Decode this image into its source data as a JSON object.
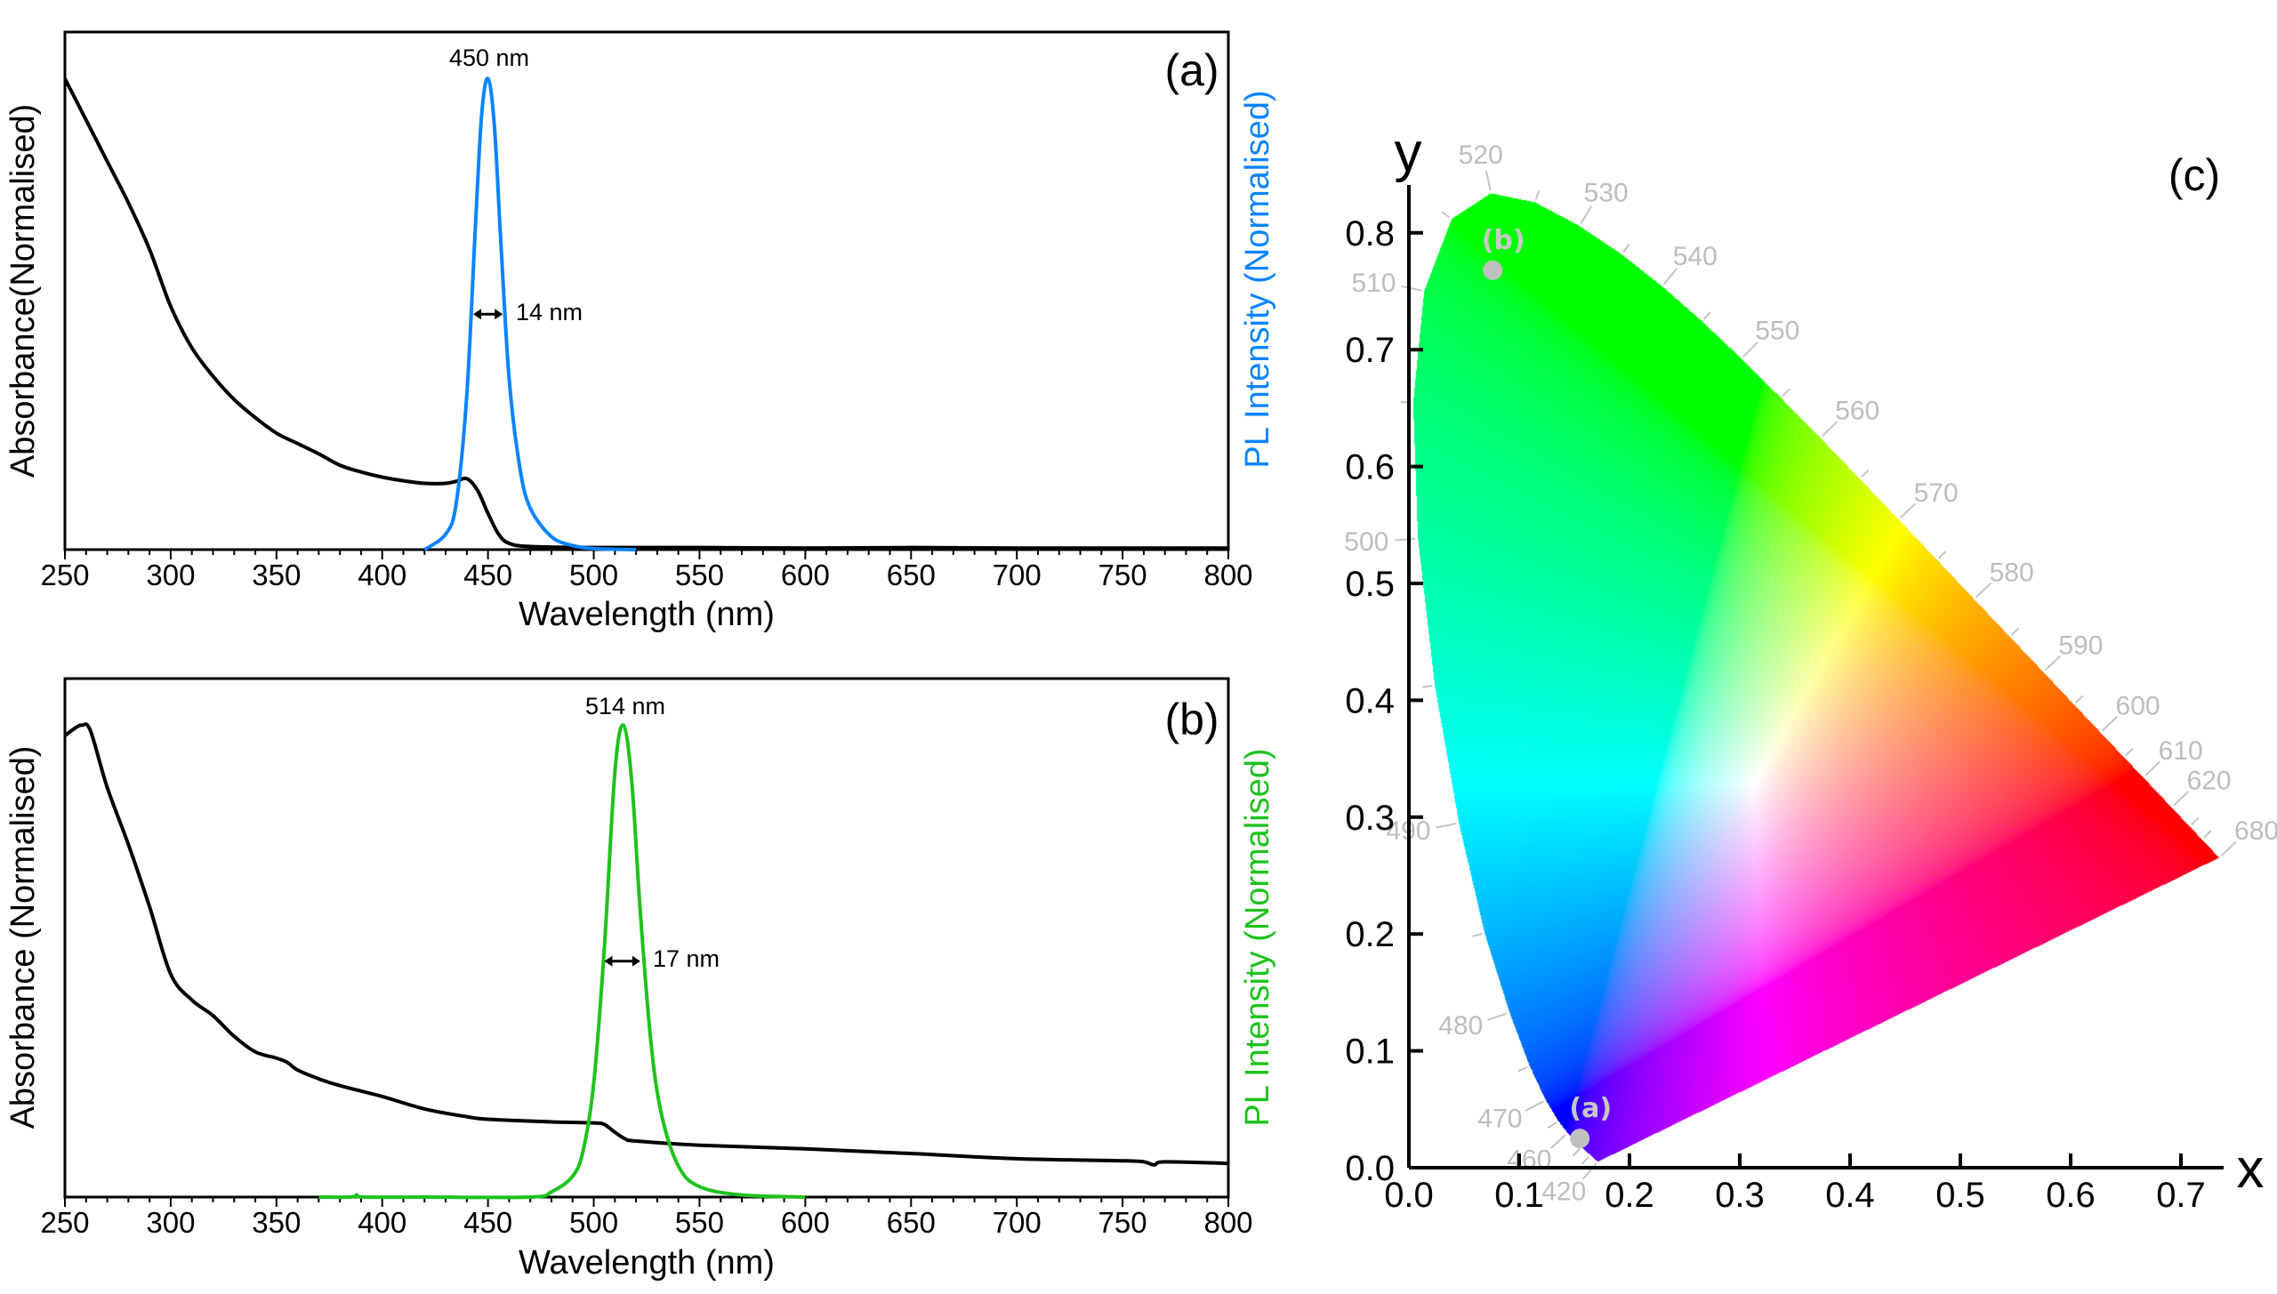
{
  "chart_data": [
    {
      "id": "panel-a",
      "type": "line",
      "panel_label": "(a)",
      "xlabel": "Wavelength (nm)",
      "ylabel_left": "Absorbance(Normalised)",
      "ylabel_right": "PL Intensity (Normalised)",
      "xlim": [
        250,
        800
      ],
      "ylim": [
        0,
        1
      ],
      "x_ticks": [
        250,
        300,
        350,
        400,
        450,
        500,
        550,
        600,
        650,
        700,
        750,
        800
      ],
      "x_minor_step": 10,
      "grid": false,
      "annotations": {
        "peak": "450 nm",
        "fwhm": "14 nm",
        "peak_x": 450,
        "fwhm_range": [
          443,
          457
        ]
      },
      "series": [
        {
          "name": "Absorbance",
          "color": "#000000",
          "x": [
            250,
            260,
            270,
            280,
            290,
            300,
            310,
            320,
            330,
            340,
            350,
            360,
            370,
            380,
            390,
            400,
            410,
            420,
            430,
            435,
            440,
            445,
            450,
            455,
            460,
            470,
            500,
            550,
            600,
            650,
            700,
            750,
            800
          ],
          "y": [
            0.91,
            0.83,
            0.75,
            0.67,
            0.58,
            0.47,
            0.39,
            0.335,
            0.29,
            0.255,
            0.225,
            0.205,
            0.185,
            0.163,
            0.15,
            0.14,
            0.133,
            0.128,
            0.128,
            0.132,
            0.137,
            0.115,
            0.07,
            0.03,
            0.012,
            0.006,
            0.004,
            0.004,
            0.003,
            0.004,
            0.003,
            0.003,
            0.003
          ]
        },
        {
          "name": "PL",
          "color": "#0a84ff",
          "x": [
            420,
            430,
            435,
            440,
            444,
            447,
            450,
            453,
            456,
            460,
            465,
            470,
            480,
            490,
            500,
            520
          ],
          "y": [
            0,
            0.03,
            0.09,
            0.3,
            0.62,
            0.84,
            0.91,
            0.82,
            0.6,
            0.33,
            0.16,
            0.08,
            0.025,
            0.008,
            0.002,
            0
          ]
        }
      ]
    },
    {
      "id": "panel-b",
      "type": "line",
      "panel_label": "(b)",
      "xlabel": "Wavelength (nm)",
      "ylabel_left": "Absorbance (Normalised)",
      "ylabel_right": "PL Intensity (Normalised)",
      "xlim": [
        250,
        800
      ],
      "ylim": [
        0,
        1
      ],
      "x_ticks": [
        250,
        300,
        350,
        400,
        450,
        500,
        550,
        600,
        650,
        700,
        750,
        800
      ],
      "x_minor_step": 10,
      "grid": false,
      "annotations": {
        "peak": "514 nm",
        "fwhm": "17 nm",
        "peak_x": 514,
        "fwhm_range": [
          505,
          522
        ]
      },
      "series": [
        {
          "name": "Absorbance",
          "color": "#000000",
          "x": [
            250,
            255,
            258,
            262,
            270,
            280,
            290,
            300,
            310,
            320,
            330,
            340,
            350,
            355,
            360,
            370,
            380,
            400,
            420,
            440,
            450,
            480,
            500,
            505,
            510,
            515,
            520,
            550,
            600,
            650,
            700,
            750,
            760,
            765,
            770,
            800
          ],
          "y": [
            0.89,
            0.905,
            0.91,
            0.9,
            0.79,
            0.68,
            0.56,
            0.43,
            0.38,
            0.35,
            0.31,
            0.28,
            0.268,
            0.26,
            0.245,
            0.228,
            0.215,
            0.194,
            0.17,
            0.155,
            0.15,
            0.145,
            0.143,
            0.14,
            0.125,
            0.112,
            0.108,
            0.1,
            0.093,
            0.084,
            0.074,
            0.07,
            0.068,
            0.062,
            0.068,
            0.065
          ]
        },
        {
          "name": "PL",
          "color": "#1ec21e",
          "x": [
            370,
            385,
            388,
            391,
            420,
            470,
            480,
            490,
            495,
            500,
            505,
            510,
            514,
            518,
            522,
            527,
            532,
            540,
            550,
            570,
            600
          ],
          "y": [
            0,
            0,
            0.004,
            0,
            0,
            0,
            0.01,
            0.04,
            0.09,
            0.22,
            0.48,
            0.82,
            0.91,
            0.8,
            0.55,
            0.3,
            0.16,
            0.06,
            0.02,
            0.004,
            0
          ]
        }
      ]
    },
    {
      "id": "panel-c",
      "type": "scatter",
      "panel_label": "(c)",
      "xlabel": "x",
      "ylabel": "y",
      "xlim": [
        0,
        0.74
      ],
      "ylim": [
        0,
        0.84
      ],
      "x_ticks": [
        "0.0",
        "0.1",
        "0.2",
        "0.3",
        "0.4",
        "0.5",
        "0.6",
        "0.7"
      ],
      "y_ticks": [
        "0.0",
        "0.1",
        "0.2",
        "0.3",
        "0.4",
        "0.5",
        "0.6",
        "0.7",
        "0.8"
      ],
      "grid": false,
      "points": [
        {
          "label": "(a)",
          "x": 0.155,
          "y": 0.025,
          "color": "#c0c0c0"
        },
        {
          "label": "(b)",
          "x": 0.076,
          "y": 0.768,
          "color": "#c0c0c0"
        }
      ],
      "spectral_locus": [
        {
          "nm": 420,
          "x": 0.1714,
          "y": 0.0051
        },
        {
          "nm": 440,
          "x": 0.1644,
          "y": 0.0109
        },
        {
          "nm": 450,
          "x": 0.1566,
          "y": 0.0177
        },
        {
          "nm": 460,
          "x": 0.144,
          "y": 0.0297
        },
        {
          "nm": 465,
          "x": 0.1355,
          "y": 0.0399
        },
        {
          "nm": 470,
          "x": 0.1241,
          "y": 0.0578
        },
        {
          "nm": 475,
          "x": 0.1096,
          "y": 0.0868
        },
        {
          "nm": 480,
          "x": 0.0913,
          "y": 0.1327
        },
        {
          "nm": 485,
          "x": 0.0687,
          "y": 0.2007
        },
        {
          "nm": 490,
          "x": 0.0454,
          "y": 0.295
        },
        {
          "nm": 495,
          "x": 0.0235,
          "y": 0.4127
        },
        {
          "nm": 500,
          "x": 0.0082,
          "y": 0.5384
        },
        {
          "nm": 505,
          "x": 0.0039,
          "y": 0.6548
        },
        {
          "nm": 510,
          "x": 0.0139,
          "y": 0.7502
        },
        {
          "nm": 515,
          "x": 0.0389,
          "y": 0.812
        },
        {
          "nm": 520,
          "x": 0.0743,
          "y": 0.8338
        },
        {
          "nm": 525,
          "x": 0.1142,
          "y": 0.8262
        },
        {
          "nm": 530,
          "x": 0.1547,
          "y": 0.8059
        },
        {
          "nm": 535,
          "x": 0.1929,
          "y": 0.7816
        },
        {
          "nm": 540,
          "x": 0.2296,
          "y": 0.7543
        },
        {
          "nm": 545,
          "x": 0.2658,
          "y": 0.7243
        },
        {
          "nm": 550,
          "x": 0.3016,
          "y": 0.6923
        },
        {
          "nm": 555,
          "x": 0.3373,
          "y": 0.6589
        },
        {
          "nm": 560,
          "x": 0.3731,
          "y": 0.6245
        },
        {
          "nm": 565,
          "x": 0.4087,
          "y": 0.5896
        },
        {
          "nm": 570,
          "x": 0.4441,
          "y": 0.5547
        },
        {
          "nm": 575,
          "x": 0.4788,
          "y": 0.5202
        },
        {
          "nm": 580,
          "x": 0.5125,
          "y": 0.4866
        },
        {
          "nm": 585,
          "x": 0.5448,
          "y": 0.4544
        },
        {
          "nm": 590,
          "x": 0.5752,
          "y": 0.4242
        },
        {
          "nm": 595,
          "x": 0.6029,
          "y": 0.3965
        },
        {
          "nm": 600,
          "x": 0.627,
          "y": 0.3725
        },
        {
          "nm": 605,
          "x": 0.6482,
          "y": 0.3514
        },
        {
          "nm": 610,
          "x": 0.6658,
          "y": 0.334
        },
        {
          "nm": 620,
          "x": 0.6915,
          "y": 0.3083
        },
        {
          "nm": 630,
          "x": 0.7079,
          "y": 0.292
        },
        {
          "nm": 640,
          "x": 0.719,
          "y": 0.2809
        },
        {
          "nm": 680,
          "x": 0.7347,
          "y": 0.2653
        }
      ],
      "wavelength_labels": [
        "420",
        "460",
        "470",
        "480",
        "490",
        "500",
        "510",
        "520",
        "530",
        "540",
        "550",
        "560",
        "570",
        "580",
        "590",
        "600",
        "610",
        "620",
        "680"
      ]
    }
  ]
}
